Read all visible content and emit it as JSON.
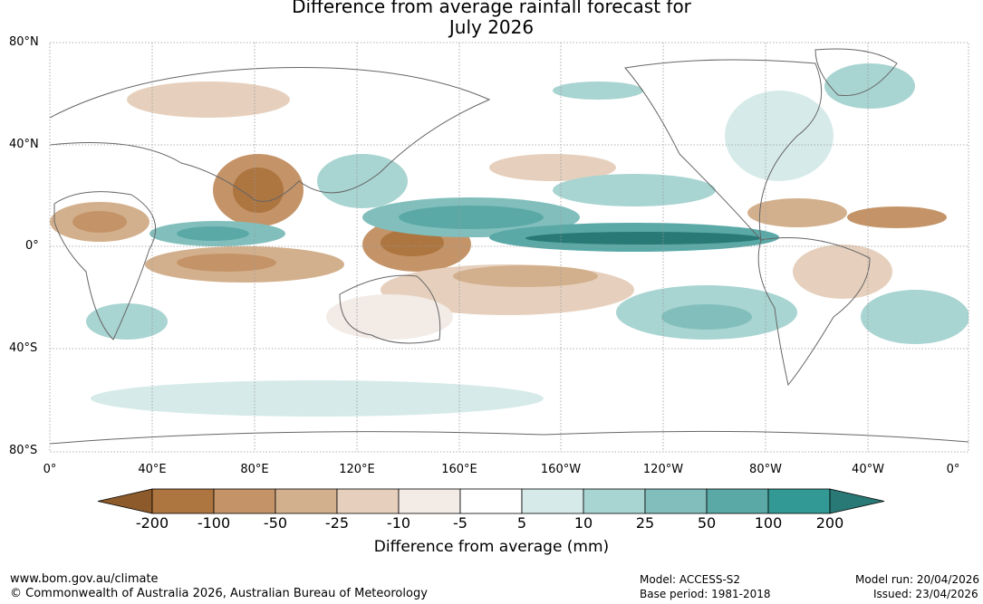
{
  "title_line1": "Difference from average rainfall forecast for",
  "title_line2": "July 2026",
  "latitude_labels": [
    "80°N",
    "40°N",
    "0°",
    "40°S",
    "80°S"
  ],
  "longitude_labels": [
    "0°",
    "40°E",
    "80°E",
    "120°E",
    "160°E",
    "160°W",
    "120°W",
    "80°W",
    "40°W",
    "0°"
  ],
  "legend": {
    "title": "Difference from average (mm)",
    "ticks": [
      "-200",
      "-100",
      "-50",
      "-25",
      "-10",
      "-5",
      "5",
      "10",
      "25",
      "50",
      "100",
      "200"
    ],
    "colors": [
      "#8c5a2b",
      "#ad7540",
      "#c49468",
      "#d3b08d",
      "#e6d0bd",
      "#f2ebe6",
      "#ffffff",
      "#d6ebe9",
      "#a8d4d1",
      "#82bfbc",
      "#5aa9a7",
      "#329994",
      "#297a77"
    ]
  },
  "footer": {
    "website": "www.bom.gov.au/climate",
    "copyright": "© Commonwealth of Australia 2026, Australian Bureau of Meteorology",
    "model": "Model: ACCESS-S2",
    "base_period": "Base period: 1981-2018",
    "model_run": "Model run: 20/04/2026",
    "issued": "Issued: 23/04/2026"
  }
}
